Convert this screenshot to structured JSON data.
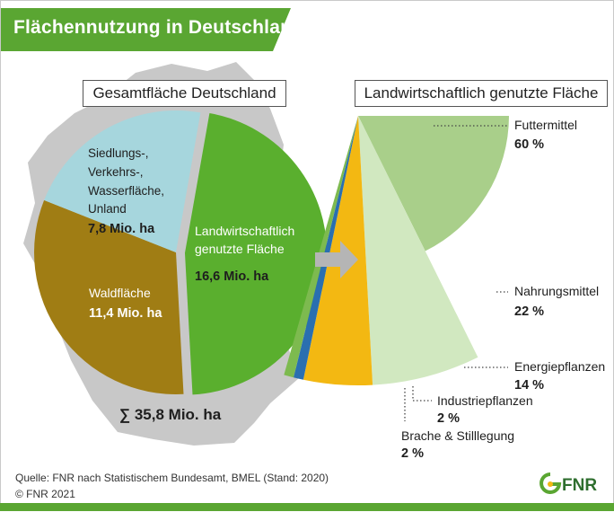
{
  "title": "Flächennutzung in Deutschland",
  "colors": {
    "brand_green": "#5aa632",
    "landwirtschaft": "#5aaf2e",
    "wald": "#a07d14",
    "siedlung": "#a6d6dd",
    "futtermittel": "#a9cf8a",
    "nahrungsmittel": "#d1e8c0",
    "energiepflanzen": "#f3b812",
    "industriepflanzen": "#2a6fb0",
    "brache": "#7dba4f",
    "map": "#c8c8c8"
  },
  "chart_data": [
    {
      "type": "pie",
      "title": "Gesamtfläche Deutschland",
      "unit": "Mio. ha",
      "slices": [
        {
          "label": "Landwirtschaftlich genutzte Fläche",
          "value": 16.6,
          "value_label": "16,6 Mio. ha",
          "exploded": true
        },
        {
          "label": "Waldfläche",
          "value": 11.4,
          "value_label": "11,4 Mio. ha"
        },
        {
          "label": "Siedlungs-, Verkehrs-, Wasserfläche, Unland",
          "value": 7.8,
          "value_label": "7,8 Mio. ha"
        }
      ],
      "total_label": "∑ 35,8 Mio. ha"
    },
    {
      "type": "pie",
      "title": "Landwirtschaftlich genutzte Fläche",
      "unit": "%",
      "slices": [
        {
          "label": "Futtermittel",
          "value": 60,
          "value_label": "60 %"
        },
        {
          "label": "Nahrungsmittel",
          "value": 22,
          "value_label": "22 %"
        },
        {
          "label": "Energiepflanzen",
          "value": 14,
          "value_label": "14 %"
        },
        {
          "label": "Industriepflanzen",
          "value": 2,
          "value_label": "2 %"
        },
        {
          "label": "Brache & Stilllegung",
          "value": 2,
          "value_label": "2 %"
        }
      ]
    }
  ],
  "left_labels": {
    "siedlung_lines": [
      "Siedlungs-,",
      "Verkehrs-,",
      "Wasserfläche,",
      "Unland"
    ],
    "landwirtschaft_lines": [
      "Landwirtschaftlich",
      "genutzte Fläche"
    ]
  },
  "source_line1": "Quelle: FNR nach Statistischem Bundesamt, BMEL (Stand: 2020)",
  "source_line2": "© FNR 2021",
  "logo_text": "FNR"
}
